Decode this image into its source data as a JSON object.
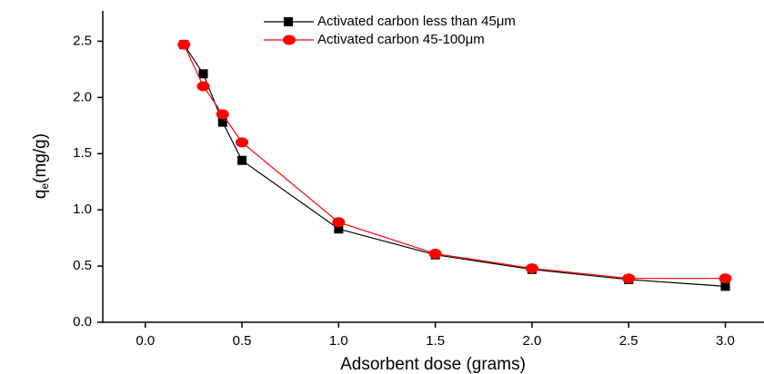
{
  "chart_data": {
    "type": "line",
    "x_label": "Adsorbent dose (grams)",
    "y_label": {
      "main": "q",
      "sub": "e",
      "rest": "(mg/g)"
    },
    "x": [
      0.2,
      0.3,
      0.4,
      0.5,
      1.0,
      1.5,
      2.0,
      2.5,
      3.0
    ],
    "series": [
      {
        "name": "Activated carbon less than 45μm",
        "color": "#000000",
        "marker": "square",
        "values": [
          2.47,
          2.21,
          1.78,
          1.44,
          0.83,
          0.6,
          0.47,
          0.38,
          0.32
        ]
      },
      {
        "name": "Activated carbon 45-100μm",
        "color": "#ff0000",
        "marker": "circle",
        "values": [
          2.47,
          2.1,
          1.85,
          1.6,
          0.89,
          0.61,
          0.48,
          0.39,
          0.39
        ]
      }
    ],
    "xlim": [
      -0.22,
      3.2
    ],
    "ylim": [
      0,
      2.77
    ],
    "xticks": [
      {
        "value": 0,
        "label": "0.0"
      },
      0.5,
      {
        "value": 1,
        "label": "1.0"
      },
      1.5,
      {
        "value": 2,
        "label": "2.0"
      },
      2.5,
      {
        "value": 3,
        "label": "3.0"
      }
    ],
    "yticks": [
      {
        "value": 0,
        "label": "0.0"
      },
      0.5,
      {
        "value": 1,
        "label": "1.0"
      },
      1.5,
      {
        "value": 2,
        "label": "2.0"
      },
      2.5
    ],
    "grid": false,
    "legend": "top"
  }
}
